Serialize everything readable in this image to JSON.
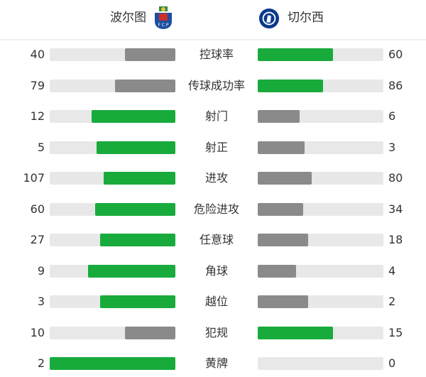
{
  "teams": {
    "home": {
      "name": "波尔图",
      "logo": "fc-porto-crest"
    },
    "away": {
      "name": "切尔西",
      "logo": "chelsea-crest"
    }
  },
  "colors": {
    "leader": "#18ab3c",
    "trailer": "#8a8a8a",
    "track": "#e8e8e8"
  },
  "stats": [
    {
      "label": "控球率",
      "home": 40,
      "away": 60
    },
    {
      "label": "传球成功率",
      "home": 79,
      "away": 86
    },
    {
      "label": "射门",
      "home": 12,
      "away": 6
    },
    {
      "label": "射正",
      "home": 5,
      "away": 3
    },
    {
      "label": "进攻",
      "home": 107,
      "away": 80
    },
    {
      "label": "危险进攻",
      "home": 60,
      "away": 34
    },
    {
      "label": "任意球",
      "home": 27,
      "away": 18
    },
    {
      "label": "角球",
      "home": 9,
      "away": 4
    },
    {
      "label": "越位",
      "home": 3,
      "away": 2
    },
    {
      "label": "犯规",
      "home": 10,
      "away": 15
    },
    {
      "label": "黄牌",
      "home": 2,
      "away": 0
    }
  ]
}
